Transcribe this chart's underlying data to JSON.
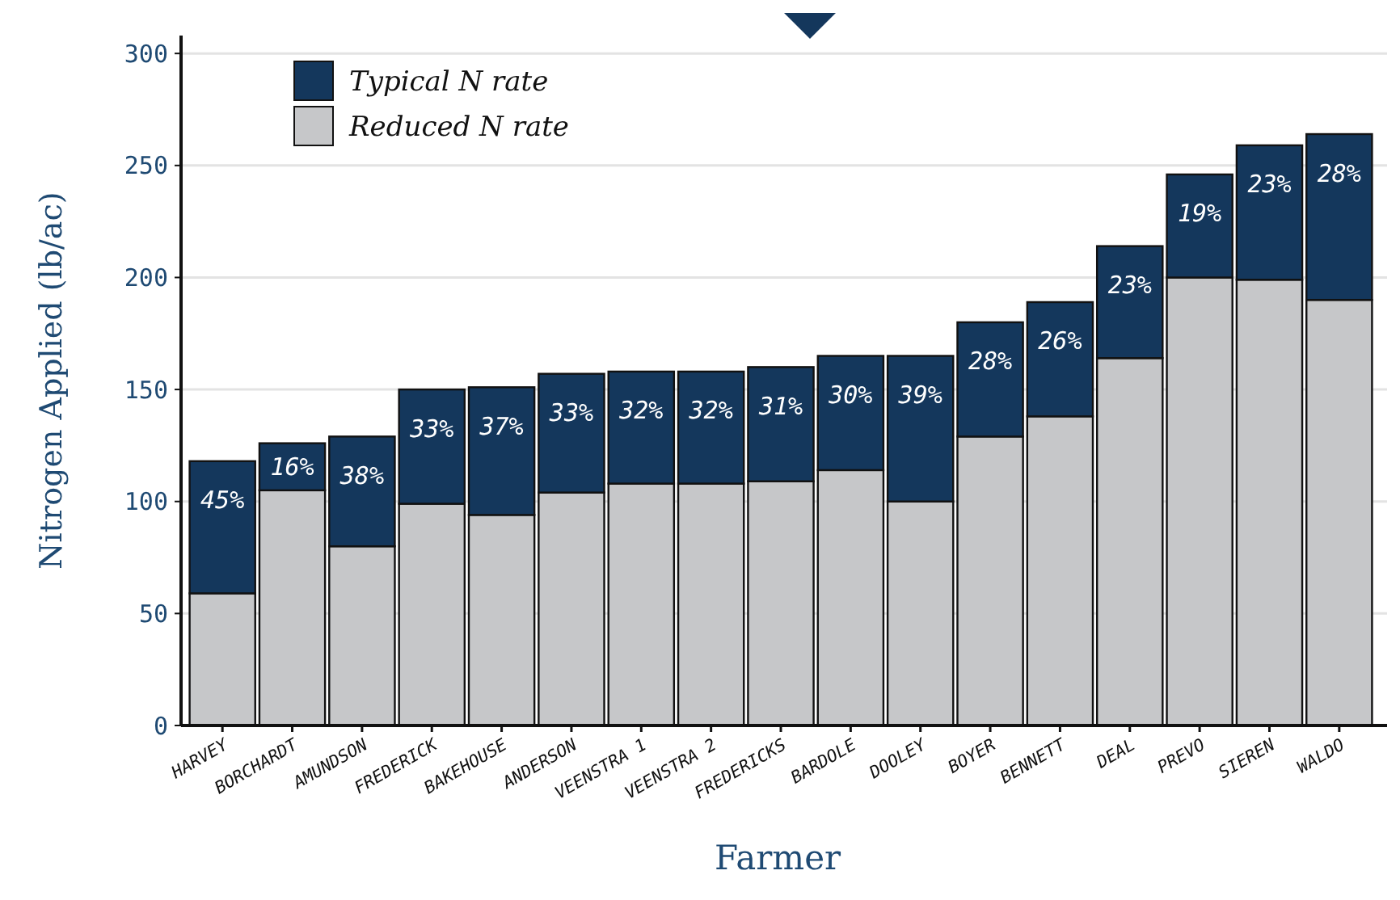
{
  "chart_data": {
    "type": "bar",
    "stacked": true,
    "xlabel": "Farmer",
    "ylabel": "Nitrogen Applied (lb/ac)",
    "categories": [
      "HARVEY",
      "BORCHARDT",
      "AMUNDSON",
      "FREDERICK",
      "BAKEHOUSE",
      "ANDERSON",
      "VEENSTRA 1",
      "VEENSTRA 2",
      "FREDERICKS",
      "BARDOLE",
      "DOOLEY",
      "BOYER",
      "BENNETT",
      "DEAL",
      "PREVO",
      "SIEREN",
      "WALDO"
    ],
    "series": [
      {
        "name": "Reduced N rate",
        "color": "#c6c7c9",
        "values": [
          59,
          105,
          80,
          99,
          94,
          104,
          108,
          108,
          109,
          114,
          100,
          129,
          138,
          164,
          200,
          199,
          190
        ]
      },
      {
        "name": "Typical N rate",
        "color": "#14375c",
        "values": [
          59,
          21,
          49,
          51,
          57,
          53,
          50,
          50,
          51,
          51,
          65,
          51,
          51,
          50,
          46,
          60,
          74
        ]
      }
    ],
    "annotations": [
      {
        "text": "45%",
        "x": "HARVEY",
        "y": 118
      },
      {
        "text": "16%",
        "x": "BORCHARDT",
        "y": 126
      },
      {
        "text": "38%",
        "x": "AMUNDSON",
        "y": 129
      },
      {
        "text": "33%",
        "x": "FREDERICK",
        "y": 150
      },
      {
        "text": "37%",
        "x": "BAKEHOUSE",
        "y": 151
      },
      {
        "text": "33%",
        "x": "ANDERSON",
        "y": 157
      },
      {
        "text": "32%",
        "x": "VEENSTRA 1",
        "y": 158
      },
      {
        "text": "32%",
        "x": "VEENSTRA 2",
        "y": 158
      },
      {
        "text": "31%",
        "x": "FREDERICKS",
        "y": 160
      },
      {
        "text": "30%",
        "x": "BARDOLE",
        "y": 165
      },
      {
        "text": "39%",
        "x": "DOOLEY",
        "y": 165
      },
      {
        "text": "28%",
        "x": "BOYER",
        "y": 180
      },
      {
        "text": "26%",
        "x": "BENNETT",
        "y": 189
      },
      {
        "text": "23%",
        "x": "DEAL",
        "y": 214
      },
      {
        "text": "19%",
        "x": "PREVO",
        "y": 246
      },
      {
        "text": "23%",
        "x": "SIEREN",
        "y": 259
      },
      {
        "text": "28%",
        "x": "WALDO",
        "y": 264
      }
    ],
    "ylim": [
      0,
      308
    ],
    "yticks": [
      0,
      50,
      100,
      150,
      200,
      250,
      300
    ],
    "grid": "y",
    "legend": "top left"
  }
}
